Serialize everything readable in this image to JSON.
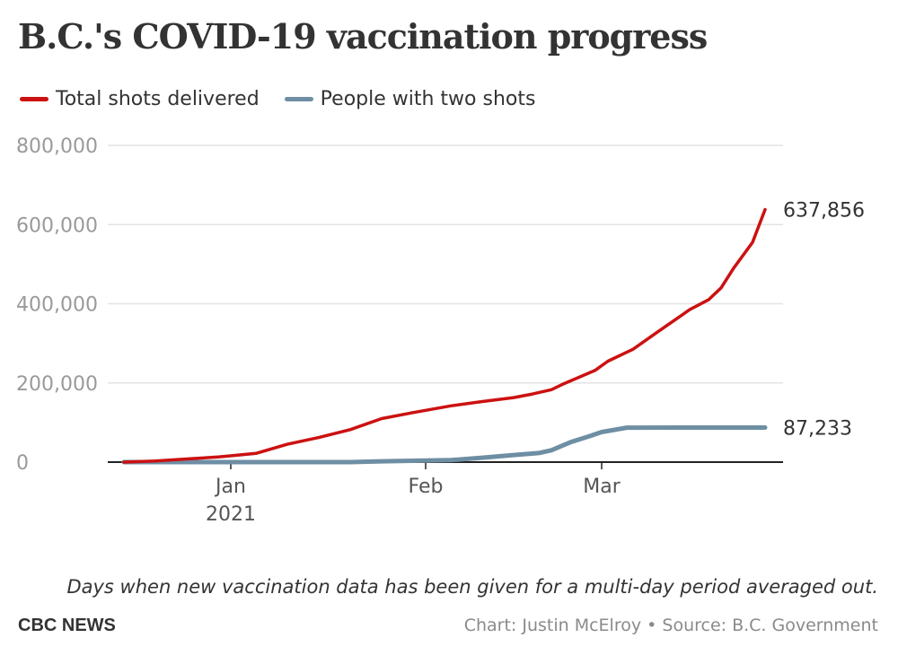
{
  "colors": {
    "total": "#cc1111",
    "two": "#6e8ea3",
    "grid": "#e3e3e3",
    "axis": "#222222",
    "tick": "#9a9a9a"
  },
  "footer": {
    "note": "Days when new vaccination data has been given for a multi-day period averaged out.",
    "brand": "CBC NEWS",
    "credit": "Chart: Justin McElroy • Source: B.C. Government"
  },
  "chart_data": {
    "type": "line",
    "title": "B.C.'s COVID-19 vaccination progress",
    "legend_position": "top-left",
    "grid": true,
    "ylim": [
      0,
      800000
    ],
    "y_ticks": [
      "800,000",
      "600,000",
      "400,000",
      "200,000",
      "0"
    ],
    "y_tick_values": [
      800000,
      600000,
      400000,
      200000,
      0
    ],
    "x_ticks": [
      {
        "label": "Jan",
        "sublabel": "2021",
        "date": "2021-01-01"
      },
      {
        "label": "Feb",
        "sublabel": "",
        "date": "2021-02-01"
      },
      {
        "label": "Mar",
        "sublabel": "",
        "date": "2021-03-01"
      }
    ],
    "xlim": [
      "2020-12-15",
      "2021-03-27"
    ],
    "series": [
      {
        "name": "Total shots delivered",
        "end_label": "637,856",
        "points": [
          [
            "2020-12-15",
            0
          ],
          [
            "2020-12-20",
            3000
          ],
          [
            "2020-12-25",
            8000
          ],
          [
            "2020-12-30",
            13000
          ],
          [
            "2021-01-05",
            22000
          ],
          [
            "2021-01-10",
            45000
          ],
          [
            "2021-01-15",
            62000
          ],
          [
            "2021-01-20",
            82000
          ],
          [
            "2021-01-25",
            110000
          ],
          [
            "2021-01-30",
            125000
          ],
          [
            "2021-02-05",
            142000
          ],
          [
            "2021-02-10",
            153000
          ],
          [
            "2021-02-15",
            163000
          ],
          [
            "2021-02-18",
            172000
          ],
          [
            "2021-02-21",
            183000
          ],
          [
            "2021-02-23",
            198000
          ],
          [
            "2021-02-28",
            232000
          ],
          [
            "2021-03-02",
            255000
          ],
          [
            "2021-03-06",
            285000
          ],
          [
            "2021-03-10",
            330000
          ],
          [
            "2021-03-15",
            385000
          ],
          [
            "2021-03-18",
            410000
          ],
          [
            "2021-03-20",
            440000
          ],
          [
            "2021-03-22",
            490000
          ],
          [
            "2021-03-25",
            555000
          ],
          [
            "2021-03-27",
            637856
          ]
        ]
      },
      {
        "name": "People with two shots",
        "end_label": "87,233",
        "points": [
          [
            "2020-12-15",
            0
          ],
          [
            "2021-01-05",
            0
          ],
          [
            "2021-01-20",
            0
          ],
          [
            "2021-01-25",
            2000
          ],
          [
            "2021-02-01",
            4000
          ],
          [
            "2021-02-05",
            5000
          ],
          [
            "2021-02-10",
            11000
          ],
          [
            "2021-02-15",
            18000
          ],
          [
            "2021-02-19",
            23000
          ],
          [
            "2021-02-21",
            30000
          ],
          [
            "2021-02-24",
            50000
          ],
          [
            "2021-02-27",
            65000
          ],
          [
            "2021-03-01",
            76000
          ],
          [
            "2021-03-05",
            87000
          ],
          [
            "2021-03-27",
            87233
          ]
        ]
      }
    ]
  }
}
